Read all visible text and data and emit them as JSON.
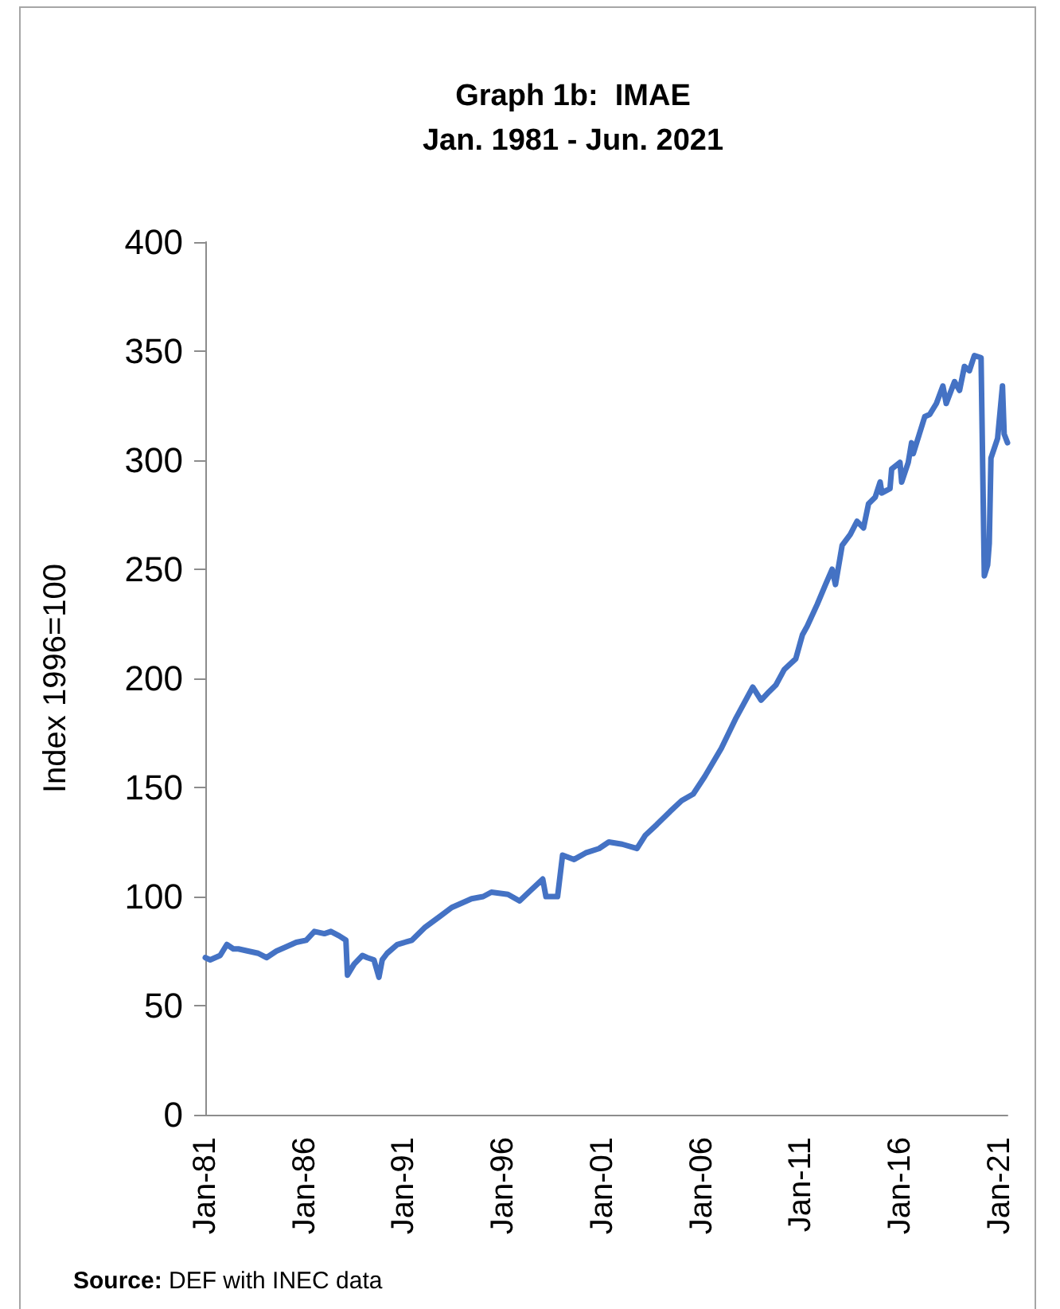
{
  "chart_data": {
    "type": "line",
    "title": "Graph 1b:  IMAE",
    "subtitle": "Jan. 1981 - Jun. 2021",
    "ylabel": "Index 1996=100",
    "annotations": [
      "Source: DEF with INEC data"
    ],
    "x": [
      "1981-01",
      "1981-04",
      "1981-07",
      "1981-10",
      "1982-02",
      "1982-06",
      "1982-09",
      "1983-03",
      "1983-09",
      "1984-02",
      "1984-08",
      "1985-02",
      "1985-08",
      "1986-02",
      "1986-07",
      "1987-01",
      "1987-05",
      "1987-10",
      "1988-02",
      "1988-03",
      "1988-07",
      "1988-12",
      "1989-03",
      "1989-07",
      "1989-10",
      "1989-12",
      "1990-03",
      "1990-09",
      "1991-06",
      "1992-02",
      "1992-11",
      "1993-06",
      "1993-12",
      "1994-06",
      "1995-01",
      "1995-06",
      "1996-04",
      "1996-11",
      "1997-06",
      "1998-01",
      "1998-03",
      "1998-10",
      "1999-01",
      "1999-08",
      "2000-03",
      "2000-11",
      "2001-05",
      "2002-01",
      "2002-10",
      "2003-03",
      "2003-10",
      "2004-06",
      "2005-01",
      "2005-08",
      "2006-03",
      "2007-01",
      "2007-10",
      "2008-08",
      "2009-01",
      "2009-06",
      "2009-10",
      "2010-03",
      "2010-10",
      "2011-02",
      "2011-05",
      "2011-11",
      "2012-04",
      "2012-08",
      "2012-10",
      "2013-02",
      "2013-07",
      "2013-11",
      "2014-03",
      "2014-06",
      "2014-10",
      "2015-01",
      "2015-02",
      "2015-07",
      "2015-08",
      "2016-01",
      "2016-02",
      "2016-06",
      "2016-08",
      "2016-09",
      "2017-04",
      "2017-07",
      "2017-11",
      "2018-03",
      "2018-05",
      "2018-10",
      "2019-01",
      "2019-04",
      "2019-07",
      "2019-10",
      "2020-02",
      "2020-04",
      "2020-06",
      "2020-07",
      "2020-08",
      "2020-12",
      "2021-03",
      "2021-04",
      "2021-06"
    ],
    "values": [
      72,
      71,
      72,
      73,
      78,
      76,
      76,
      75,
      74,
      72,
      75,
      77,
      79,
      80,
      84,
      83,
      84,
      82,
      80,
      64,
      69,
      73,
      72,
      71,
      63,
      71,
      74,
      78,
      80,
      86,
      91,
      95,
      97,
      99,
      100,
      102,
      101,
      98,
      103,
      108,
      100,
      100,
      119,
      117,
      120,
      122,
      125,
      124,
      122,
      128,
      133,
      139,
      144,
      147,
      155,
      168,
      182,
      196,
      190,
      194,
      197,
      204,
      209,
      220,
      224,
      234,
      243,
      250,
      243,
      261,
      266,
      272,
      269,
      280,
      283,
      290,
      285,
      287,
      296,
      299,
      290,
      299,
      308,
      303,
      320,
      321,
      326,
      334,
      326,
      336,
      332,
      343,
      341,
      348,
      347,
      247,
      252,
      262,
      301,
      310,
      334,
      312,
      308
    ],
    "color": "#4472c4",
    "marker": "none",
    "line_style": "solid",
    "xlim": [
      "1981-01",
      "2021-06"
    ],
    "xticks": [
      {
        "value": "1981-01",
        "label": "Jan-81"
      },
      {
        "value": "1986-01",
        "label": "Jan-86"
      },
      {
        "value": "1991-01",
        "label": "Jan-91"
      },
      {
        "value": "1996-01",
        "label": "Jan-96"
      },
      {
        "value": "2001-01",
        "label": "Jan-01"
      },
      {
        "value": "2006-01",
        "label": "Jan-06"
      },
      {
        "value": "2011-01",
        "label": "Jan-11"
      },
      {
        "value": "2016-01",
        "label": "Jan-16"
      },
      {
        "value": "2021-01",
        "label": "Jan-21"
      }
    ],
    "ylim": [
      0,
      400
    ],
    "yticks": [
      0,
      50,
      100,
      150,
      200,
      250,
      300,
      350,
      400
    ]
  }
}
